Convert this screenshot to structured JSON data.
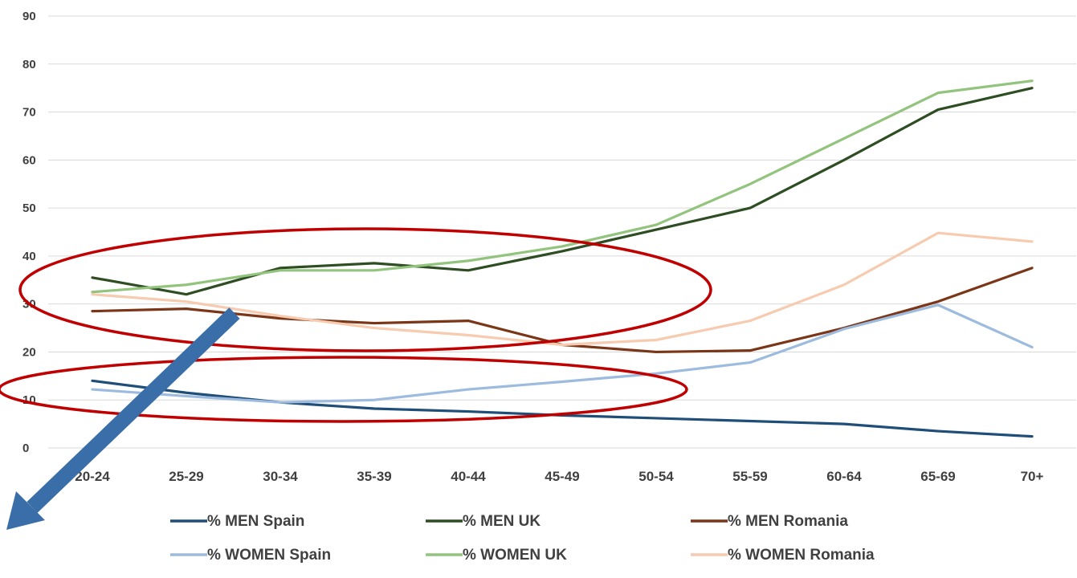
{
  "chart_data": {
    "type": "line",
    "title": "",
    "xlabel": "",
    "ylabel": "",
    "categories": [
      "20-24",
      "25-29",
      "30-34",
      "35-39",
      "40-44",
      "45-49",
      "50-54",
      "55-59",
      "60-64",
      "65-69",
      "70+"
    ],
    "y_ticks": [
      0,
      10,
      20,
      30,
      40,
      50,
      60,
      70,
      80,
      90
    ],
    "ylim": [
      0,
      90
    ],
    "grid": true,
    "legend_position": "bottom",
    "series": [
      {
        "name": "% MEN Spain",
        "color": "#1f4e79",
        "values": [
          14,
          11.5,
          9.5,
          8.2,
          7.6,
          6.8,
          6.2,
          5.6,
          5,
          3.5,
          2.4
        ]
      },
      {
        "name": "% MEN UK",
        "color": "#2e4d23",
        "values": [
          35.5,
          32,
          37.5,
          38.5,
          37,
          41,
          45.5,
          50,
          60,
          70.5,
          75
        ]
      },
      {
        "name": "% MEN Romania",
        "color": "#7b3618",
        "values": [
          28.5,
          29,
          27,
          26,
          26.5,
          21.5,
          20,
          20.3,
          25,
          30.5,
          37.5
        ]
      },
      {
        "name": "% WOMEN Spain",
        "color": "#9dbbdf",
        "values": [
          12.2,
          10.8,
          9.5,
          10,
          12.2,
          13.8,
          15.5,
          17.8,
          24.8,
          29.8,
          21
        ]
      },
      {
        "name": "% WOMEN UK",
        "color": "#93c47d",
        "values": [
          32.5,
          34,
          37,
          37,
          39,
          42,
          46.5,
          55,
          64.5,
          74,
          76.5
        ]
      },
      {
        "name": "% WOMEN Romania",
        "color": "#f6cbb0",
        "values": [
          32,
          30.5,
          27.5,
          25,
          23.5,
          21.5,
          22.5,
          26.5,
          34,
          44.8,
          43
        ]
      }
    ]
  },
  "annotations": {
    "ellipse_color": "#c00000",
    "arrow_color": "#3a6ea8"
  }
}
